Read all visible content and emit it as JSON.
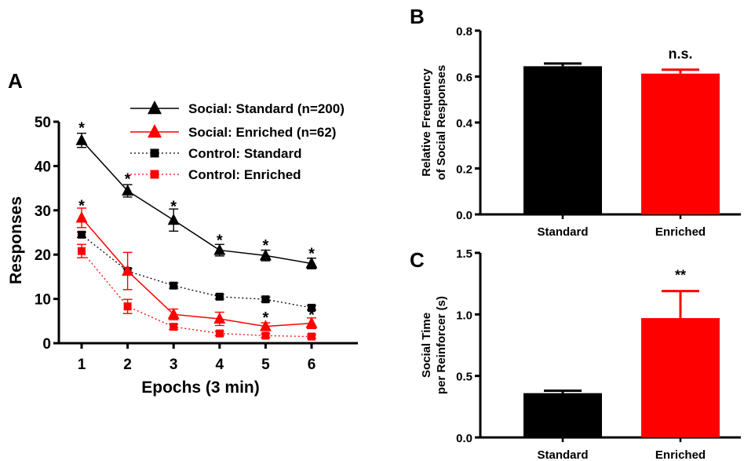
{
  "chart_data": [
    {
      "panel": "A",
      "type": "line",
      "xlabel": "Epochs (3 min)",
      "ylabel": "Responses",
      "x": [
        1,
        2,
        3,
        4,
        5,
        6
      ],
      "ylim": [
        0,
        50
      ],
      "yticks": [
        0,
        10,
        20,
        30,
        40,
        50
      ],
      "legend_position": "top-right",
      "series": [
        {
          "name": "Social: Standard (n=200)",
          "marker": "triangle",
          "line": "solid",
          "color": "#000000",
          "values": [
            45.8,
            34.4,
            27.8,
            21.0,
            19.8,
            18.0
          ],
          "error": [
            1.6,
            1.4,
            2.5,
            1.3,
            1.2,
            1.2
          ]
        },
        {
          "name": "Social: Enriched (n=62)",
          "marker": "triangle",
          "line": "solid",
          "color": "#ff0000",
          "values": [
            28.3,
            16.3,
            6.5,
            5.5,
            3.8,
            4.5
          ],
          "error": [
            2.2,
            4.2,
            1.2,
            1.5,
            0.8,
            1.2
          ]
        },
        {
          "name": "Control: Standard",
          "marker": "square",
          "line": "dotted",
          "color": "#000000",
          "values": [
            24.5,
            16.3,
            13.0,
            10.5,
            9.9,
            8.0
          ],
          "error": [
            0.6,
            0.6,
            0.6,
            0.5,
            0.5,
            0.5
          ]
        },
        {
          "name": "Control: Enriched",
          "marker": "square",
          "line": "dotted",
          "color": "#ff0000",
          "values": [
            20.8,
            8.3,
            3.7,
            2.2,
            1.7,
            1.5
          ],
          "error": [
            1.5,
            1.6,
            0.6,
            0.5,
            0.4,
            0.4
          ]
        }
      ],
      "annotations": [
        {
          "text": "*",
          "x": 1,
          "y": 49.0
        },
        {
          "text": "*",
          "x": 2,
          "y": 37.5
        },
        {
          "text": "*",
          "x": 3,
          "y": 31.3
        },
        {
          "text": "*",
          "x": 4,
          "y": 23.7
        },
        {
          "text": "*",
          "x": 5,
          "y": 22.5
        },
        {
          "text": "*",
          "x": 6,
          "y": 20.7
        },
        {
          "text": "*",
          "x": 1,
          "y": 31.5
        },
        {
          "text": "*",
          "x": 5,
          "y": 6.2
        },
        {
          "text": "*",
          "x": 6,
          "y": 6.8
        }
      ]
    },
    {
      "panel": "B",
      "type": "bar",
      "categories": [
        "Standard",
        "Enriched"
      ],
      "values": [
        0.645,
        0.613
      ],
      "error": [
        0.012,
        0.017
      ],
      "colors": [
        "#000000",
        "#ff0000"
      ],
      "ylabel": [
        "Relative Frequency",
        "of Social Responses"
      ],
      "ylim": [
        0,
        0.8
      ],
      "yticks": [
        "0.0",
        "0.2",
        "0.4",
        "0.6",
        "0.8"
      ],
      "significance": "n.s."
    },
    {
      "panel": "C",
      "type": "bar",
      "categories": [
        "Standard",
        "Enriched"
      ],
      "values": [
        0.36,
        0.97
      ],
      "error": [
        0.02,
        0.22
      ],
      "colors": [
        "#000000",
        "#ff0000"
      ],
      "ylabel": [
        "Social Time",
        "per Reinforcer (s)"
      ],
      "ylim": [
        0,
        1.5
      ],
      "yticks": [
        "0.0",
        "0.5",
        "1.0",
        "1.5"
      ],
      "significance": "**"
    }
  ]
}
